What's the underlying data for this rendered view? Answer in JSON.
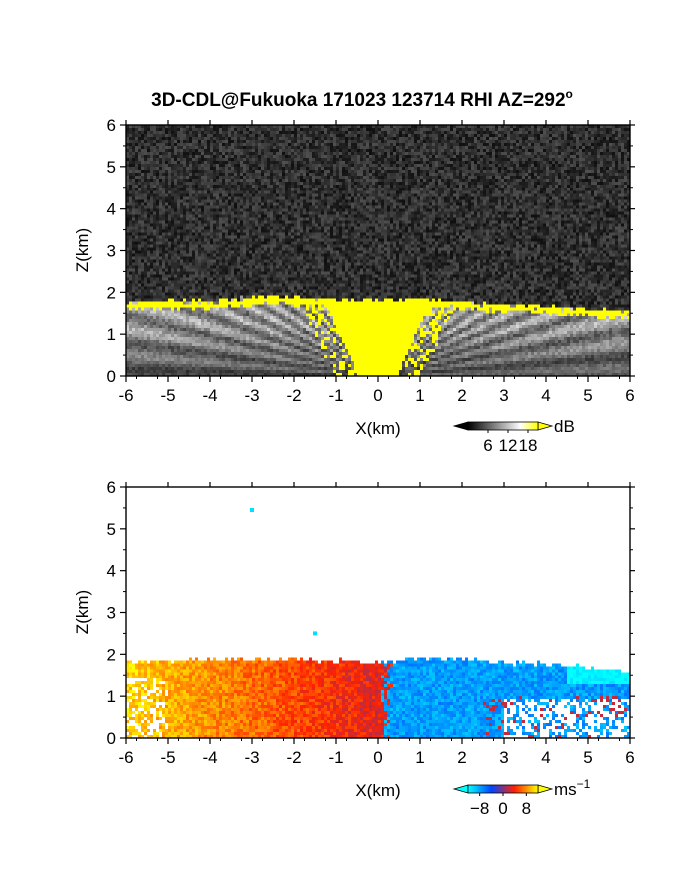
{
  "title": "3D-CDL@Fukuoka 171023 123714 RHI AZ=292",
  "title_sup": "o",
  "chart_data": [
    {
      "type": "heatmap",
      "name": "snr",
      "xlabel": "X(km)",
      "ylabel": "Z(km)",
      "xlim": [
        -6,
        6
      ],
      "ylim": [
        0,
        6
      ],
      "x_ticks": [
        "-6",
        "-5",
        "-4",
        "-3",
        "-2",
        "-1",
        "0",
        "1",
        "2",
        "3",
        "4",
        "5",
        "6"
      ],
      "y_ticks": [
        "0",
        "1",
        "2",
        "3",
        "4",
        "5",
        "6"
      ],
      "colorbar": {
        "unit": "dB",
        "tick_labels": [
          "6",
          "12",
          "18"
        ],
        "colors": [
          "#000000",
          "#ffffff",
          "#ffff00"
        ]
      },
      "boundary_layer_top_km": [
        [
          -6,
          1.75
        ],
        [
          -5,
          1.8
        ],
        [
          -4,
          1.8
        ],
        [
          -3,
          1.88
        ],
        [
          -2,
          1.88
        ],
        [
          -1,
          1.85
        ],
        [
          0,
          1.82
        ],
        [
          1,
          1.85
        ],
        [
          2,
          1.78
        ],
        [
          3,
          1.72
        ],
        [
          4,
          1.68
        ],
        [
          5,
          1.6
        ],
        [
          6,
          1.55
        ]
      ],
      "saturated_half_width_km": 1.3
    },
    {
      "type": "heatmap",
      "name": "doppler_velocity",
      "xlabel": "X(km)",
      "ylabel": "Z(km)",
      "xlim": [
        -6,
        6
      ],
      "ylim": [
        0,
        6
      ],
      "x_ticks": [
        "-6",
        "-5",
        "-4",
        "-3",
        "-2",
        "-1",
        "0",
        "1",
        "2",
        "3",
        "4",
        "5",
        "6"
      ],
      "y_ticks": [
        "0",
        "1",
        "2",
        "3",
        "4",
        "5",
        "6"
      ],
      "colorbar": {
        "unit": "ms",
        "unit_sup": "−1",
        "tick_labels": [
          "−8",
          "0",
          "8"
        ],
        "colors": [
          "#00ffff",
          "#0044ff",
          "#ff2200",
          "#ffff00"
        ]
      },
      "positive_region_x_km": [
        -6,
        0.2
      ],
      "negative_region_x_km": [
        0.2,
        6
      ],
      "boundary_layer_top_km": [
        [
          -6,
          1.82
        ],
        [
          -4,
          1.88
        ],
        [
          -2,
          1.88
        ],
        [
          0,
          1.82
        ],
        [
          1,
          1.92
        ],
        [
          2,
          1.9
        ],
        [
          3,
          1.8
        ],
        [
          4,
          1.78
        ],
        [
          5,
          1.7
        ],
        [
          6,
          1.6
        ]
      ],
      "isolated_echoes_km": [
        [
          -3.0,
          5.45
        ],
        [
          -1.5,
          2.5
        ]
      ]
    }
  ]
}
